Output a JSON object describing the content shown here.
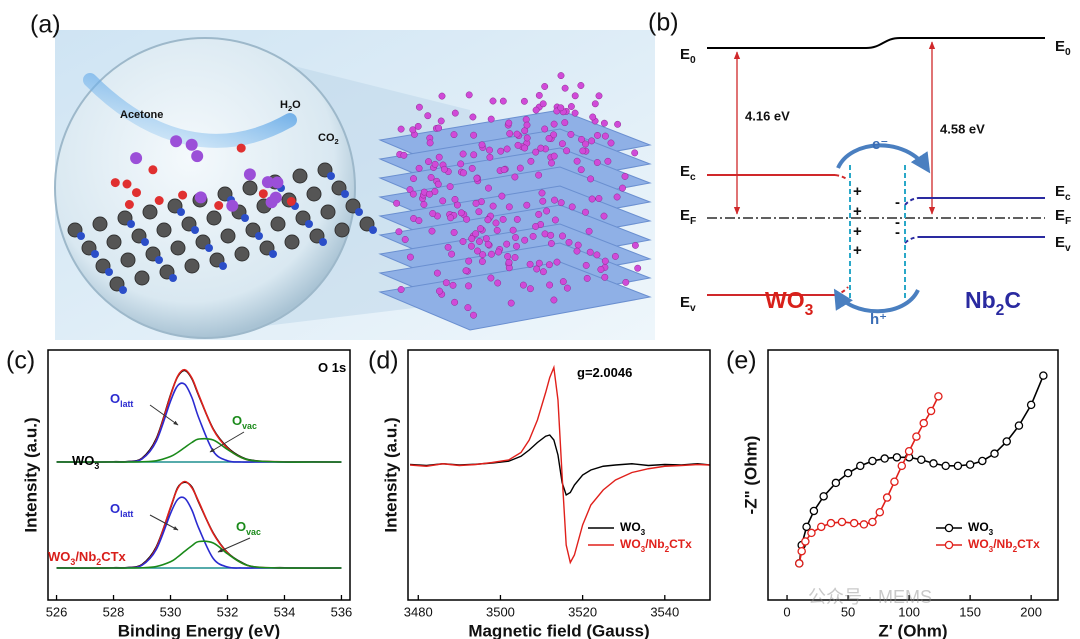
{
  "panel_labels": [
    "(a)",
    "(b)",
    "(c)",
    "(d)",
    "(e)"
  ],
  "illustration": {
    "labels": [
      [
        "Acetone"
      ],
      [
        "H",
        "2",
        "O"
      ],
      [
        "CO",
        "2"
      ]
    ]
  },
  "band_diagram": {
    "work_functions": [
      "4.16 eV",
      "4.58 eV"
    ],
    "left_levels": [
      [
        "E",
        "0"
      ],
      [
        "E",
        "c"
      ],
      [
        "E",
        "F"
      ],
      [
        "E",
        "v"
      ]
    ],
    "right_levels": [
      [
        "E",
        "0"
      ],
      [
        "E",
        "c"
      ],
      [
        "E",
        "F"
      ],
      [
        "E",
        "v"
      ]
    ],
    "carriers": [
      "e⁻",
      "h⁺"
    ],
    "charges": [
      "+",
      "-"
    ],
    "materials": [
      [
        "WO",
        "3"
      ],
      [
        "Nb",
        "2",
        "C"
      ]
    ]
  },
  "watermark": "公众号 · MEMS",
  "chart_data": [
    {
      "type": "line",
      "x_label": "Binding Energy (eV)",
      "y_label": "Intensity (a.u.)",
      "x": [
        526,
        527,
        528,
        528.5,
        529,
        529.5,
        530,
        530.25,
        530.5,
        530.75,
        531,
        531.5,
        532,
        532.5,
        533,
        534,
        535,
        536
      ],
      "xlim": [
        525.7,
        536.3
      ],
      "xticks": [
        526,
        528,
        530,
        532,
        534,
        536
      ],
      "ylim": [
        0,
        1
      ],
      "annotations": [
        [
          "O 1s"
        ],
        [
          "O",
          "latt"
        ],
        [
          "O",
          "vac"
        ],
        [
          "WO",
          "3"
        ],
        [
          "O",
          "latt"
        ],
        [
          "O",
          "vac"
        ],
        [
          "WO",
          "3",
          "/Nb",
          "2",
          "CTx"
        ]
      ],
      "annotation_colors": [
        "#000000",
        "#2b2bd0",
        "#1a8a1a",
        "#000000",
        "#2b2bd0",
        "#1a8a1a",
        "#d81e1a"
      ],
      "series": [
        {
          "color": "#1f8f8f",
          "values": [
            0.552,
            0.552,
            0.552,
            0.552,
            0.552,
            0.552,
            0.552,
            0.552,
            0.552,
            0.552,
            0.552,
            0.552,
            0.552,
            0.552,
            0.552,
            0.552,
            0.552,
            0.552
          ]
        },
        {
          "color": "#000000",
          "values": [
            0.553,
            0.551,
            0.553,
            0.554,
            0.567,
            0.645,
            0.82,
            0.893,
            0.918,
            0.885,
            0.815,
            0.684,
            0.61,
            0.571,
            0.557,
            0.552,
            0.553,
            0.551
          ]
        },
        {
          "color": "#e0201b",
          "values": [
            0.552,
            0.552,
            0.552,
            0.553,
            0.565,
            0.64,
            0.817,
            0.895,
            0.921,
            0.888,
            0.818,
            0.682,
            0.607,
            0.569,
            0.556,
            0.553,
            0.552,
            0.552
          ]
        },
        {
          "color": "#2b2bd0",
          "values": [
            0.552,
            0.552,
            0.552,
            0.553,
            0.564,
            0.635,
            0.795,
            0.857,
            0.863,
            0.81,
            0.726,
            0.595,
            0.557,
            0.552,
            0.552,
            0.552,
            0.552,
            0.552
          ]
        },
        {
          "color": "#1a8a1a",
          "values": [
            0.552,
            0.552,
            0.552,
            0.552,
            0.553,
            0.557,
            0.574,
            0.59,
            0.61,
            0.63,
            0.644,
            0.64,
            0.602,
            0.569,
            0.556,
            0.552,
            0.552,
            0.552
          ]
        },
        {
          "color": "#1f8f8f",
          "values": [
            0.128,
            0.128,
            0.128,
            0.128,
            0.128,
            0.128,
            0.128,
            0.128,
            0.128,
            0.128,
            0.128,
            0.128,
            0.128,
            0.128,
            0.128,
            0.128,
            0.128,
            0.128
          ]
        },
        {
          "color": "#000000",
          "values": [
            0.129,
            0.127,
            0.129,
            0.13,
            0.142,
            0.212,
            0.368,
            0.449,
            0.471,
            0.452,
            0.388,
            0.268,
            0.19,
            0.15,
            0.131,
            0.129,
            0.127,
            0.128
          ]
        },
        {
          "color": "#e0201b",
          "values": [
            0.128,
            0.128,
            0.128,
            0.129,
            0.14,
            0.208,
            0.371,
            0.446,
            0.474,
            0.449,
            0.391,
            0.266,
            0.189,
            0.148,
            0.132,
            0.128,
            0.128,
            0.128
          ]
        },
        {
          "color": "#2b2bd0",
          "values": [
            0.128,
            0.128,
            0.128,
            0.129,
            0.139,
            0.202,
            0.346,
            0.402,
            0.407,
            0.36,
            0.285,
            0.166,
            0.132,
            0.128,
            0.128,
            0.128,
            0.128,
            0.128
          ]
        },
        {
          "color": "#1a8a1a",
          "values": [
            0.128,
            0.128,
            0.128,
            0.128,
            0.129,
            0.134,
            0.153,
            0.172,
            0.195,
            0.217,
            0.234,
            0.228,
            0.185,
            0.148,
            0.132,
            0.128,
            0.128,
            0.128
          ]
        }
      ]
    },
    {
      "type": "line",
      "x_label": "Magnetic field (Gauss)",
      "y_label": "Intensity (a.u.)",
      "x": [
        3478,
        3482,
        3486,
        3490,
        3494,
        3498,
        3502,
        3505,
        3507,
        3509,
        3511,
        3512,
        3513,
        3514,
        3515,
        3516,
        3517,
        3518,
        3520,
        3522,
        3525,
        3528,
        3532,
        3536,
        3540,
        3544,
        3548,
        3551
      ],
      "xlim": [
        3477.5,
        3551
      ],
      "xticks": [
        3480,
        3500,
        3520,
        3540
      ],
      "ylim": [
        0,
        1
      ],
      "legend": "lower right",
      "annotations": [
        [
          "g=2.0046"
        ]
      ],
      "annotation_colors": [
        "#000000"
      ],
      "series": [
        {
          "name": [
            "WO",
            "3"
          ],
          "color": "#000000",
          "values": [
            0.542,
            0.538,
            0.545,
            0.54,
            0.543,
            0.548,
            0.555,
            0.575,
            0.6,
            0.63,
            0.655,
            0.66,
            0.64,
            0.58,
            0.47,
            0.42,
            0.43,
            0.46,
            0.5,
            0.52,
            0.535,
            0.54,
            0.545,
            0.538,
            0.542,
            0.54,
            0.545,
            0.54
          ]
        },
        {
          "name": [
            "WO",
            "3",
            "/Nb",
            "2",
            "CTx"
          ],
          "color": "#e0201b",
          "values": [
            0.54,
            0.535,
            0.545,
            0.538,
            0.542,
            0.55,
            0.56,
            0.59,
            0.64,
            0.72,
            0.83,
            0.89,
            0.93,
            0.8,
            0.5,
            0.22,
            0.15,
            0.18,
            0.3,
            0.38,
            0.44,
            0.48,
            0.51,
            0.525,
            0.535,
            0.538,
            0.542,
            0.54
          ]
        }
      ]
    },
    {
      "type": "line",
      "x_label": "Z' (Ohm)",
      "y_label": "-Z\" (Ohm)",
      "xlim": [
        -15.6,
        222
      ],
      "xticks": [
        0,
        50,
        100,
        150,
        200
      ],
      "ylim": [
        0,
        205
      ],
      "legend": "lower right",
      "marker": "open-circle",
      "series": [
        {
          "name": [
            "WO",
            "3"
          ],
          "color": "#000000",
          "x": [
            10,
            12,
            16,
            22,
            30,
            40,
            50,
            60,
            70,
            80,
            90,
            100,
            110,
            120,
            130,
            140,
            150,
            160,
            170,
            180,
            190,
            200,
            210
          ],
          "values": [
            30,
            45,
            60,
            73,
            85,
            96,
            104,
            110,
            114,
            116,
            117,
            117,
            115,
            112,
            110,
            110,
            111,
            114,
            120,
            130,
            143,
            160,
            184
          ]
        },
        {
          "name": [
            "WO",
            "3",
            "/Nb",
            "2",
            "CTx"
          ],
          "color": "#e0201b",
          "x": [
            10,
            12,
            15,
            20,
            28,
            36,
            45,
            55,
            63,
            70,
            76,
            82,
            88,
            94,
            100,
            106,
            112,
            118,
            124
          ],
          "values": [
            30,
            40,
            48,
            55,
            60,
            63,
            64,
            63,
            62,
            64,
            72,
            84,
            97,
            110,
            122,
            134,
            145,
            155,
            167
          ]
        }
      ]
    }
  ]
}
